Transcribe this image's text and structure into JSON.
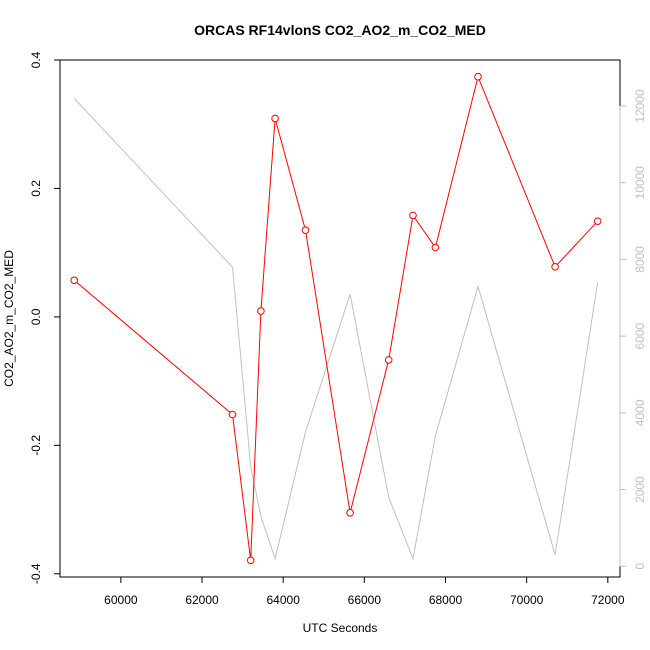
{
  "chart_data": {
    "type": "line",
    "title": "ORCAS RF14vlonS CO2_AO2_m_CO2_MED",
    "xlabel": "UTC Seconds",
    "ylabel": "CO2_AO2_m_CO2_MED",
    "y2label": "",
    "xlim": [
      58500,
      72300
    ],
    "ylim": [
      -0.405,
      0.4
    ],
    "y2lim": [
      -280,
      13200
    ],
    "x_ticks": [
      60000,
      62000,
      64000,
      66000,
      68000,
      70000,
      72000
    ],
    "y_ticks": [
      -0.4,
      -0.2,
      0.0,
      0.2,
      0.4
    ],
    "y_tick_labels": [
      "-0.4",
      "-0.2",
      "0.0",
      "0.2",
      "0.4"
    ],
    "y2_ticks": [
      0,
      2000,
      4000,
      6000,
      8000,
      10000,
      12000
    ],
    "grid": false,
    "legend": "none",
    "series": [
      {
        "axis": "left",
        "color": "#ff0000",
        "marker": "open-circle",
        "x": [
          58850,
          62750,
          63200,
          63450,
          63800,
          64550,
          65650,
          66600,
          67200,
          67750,
          68800,
          70700,
          71750
        ],
        "y": [
          0.057,
          -0.152,
          -0.379,
          0.009,
          0.309,
          0.135,
          -0.305,
          -0.067,
          0.158,
          0.108,
          0.374,
          0.078,
          0.149
        ]
      },
      {
        "axis": "right",
        "color": "#c0c0c0",
        "marker": "none",
        "x": [
          58850,
          62750,
          63200,
          63450,
          63800,
          64550,
          65650,
          66600,
          67200,
          67750,
          68800,
          70700,
          71750
        ],
        "y": [
          12200,
          7800,
          2600,
          1300,
          200,
          3500,
          7100,
          1800,
          200,
          3400,
          7300,
          300,
          7400
        ]
      }
    ]
  }
}
